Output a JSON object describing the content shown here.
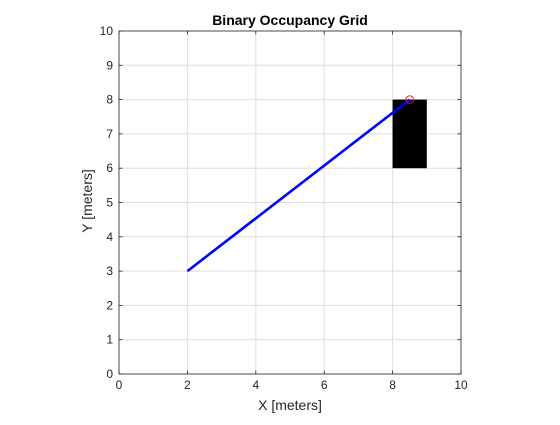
{
  "colors": {
    "figure_background": "#ffffff",
    "axes_background": "#ffffff",
    "grid": "#dedede",
    "axis_line": "#262626",
    "text": "#262626",
    "title": "#000000",
    "occupied_cell": "#000000",
    "path_line": "#0000ff",
    "goal_marker": "#ff0000"
  },
  "chart_data": {
    "type": "scatter",
    "title": "Binary Occupancy Grid",
    "xlabel": "X [meters]",
    "ylabel": "Y [meters]",
    "xlim": [
      0,
      10
    ],
    "ylim": [
      0,
      10
    ],
    "grid": true,
    "x_ticks": [
      "0",
      "2",
      "4",
      "6",
      "8",
      "10"
    ],
    "y_ticks": [
      "0",
      "1",
      "2",
      "3",
      "4",
      "5",
      "6",
      "7",
      "8",
      "9",
      "10"
    ],
    "occupied_regions": [
      {
        "x": [
          8,
          9
        ],
        "y": [
          6,
          8
        ]
      }
    ],
    "series": [
      {
        "kind": "line",
        "x": [
          2,
          8.5
        ],
        "y": [
          3,
          8
        ]
      },
      {
        "kind": "marker",
        "marker": "circle",
        "x": [
          8.5
        ],
        "y": [
          8
        ]
      }
    ]
  }
}
